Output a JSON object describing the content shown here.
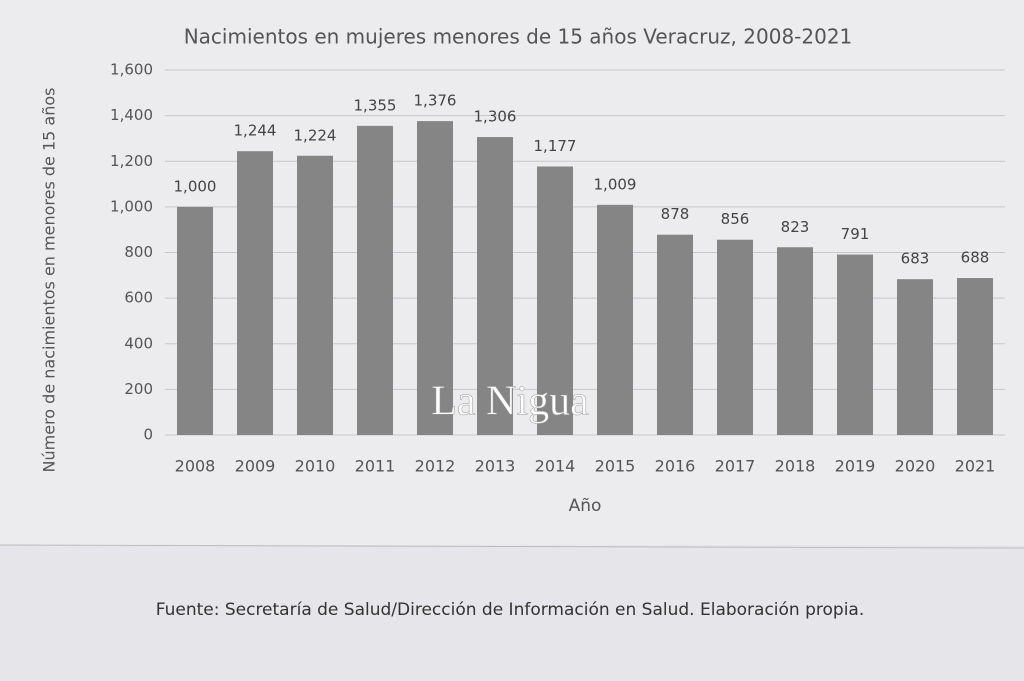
{
  "chart_data": {
    "type": "bar",
    "title": "Nacimientos en mujeres menores de 15 años  Veracruz, 2008-2021",
    "x_label": "Año",
    "y_label": "Número de nacimientos en menores de 15 años",
    "categories": [
      "2008",
      "2009",
      "2010",
      "2011",
      "2012",
      "2013",
      "2014",
      "2015",
      "2016",
      "2017",
      "2018",
      "2019",
      "2020",
      "2021"
    ],
    "values": [
      1000,
      1244,
      1224,
      1355,
      1376,
      1306,
      1177,
      1009,
      878,
      856,
      823,
      791,
      683,
      688
    ],
    "value_labels": [
      "1,000",
      "1,244",
      "1,224",
      "1,355",
      "1,376",
      "1,306",
      "1,177",
      "1,009",
      "878",
      "856",
      "823",
      "791",
      "683",
      "688"
    ],
    "color": "#858585",
    "ylim": [
      0,
      1600
    ],
    "yticks": [
      0,
      200,
      400,
      600,
      800,
      {
        "value": 1000,
        "label": "1,000"
      },
      {
        "value": 1200,
        "label": "1,200"
      },
      {
        "value": 1400,
        "label": "1,400"
      },
      {
        "value": 1600,
        "label": "1,600"
      }
    ],
    "grid": true,
    "watermark": "La Nigua",
    "source": "Fuente: Secretaría de Salud/Dirección de Información en Salud. Elaboración propia."
  }
}
